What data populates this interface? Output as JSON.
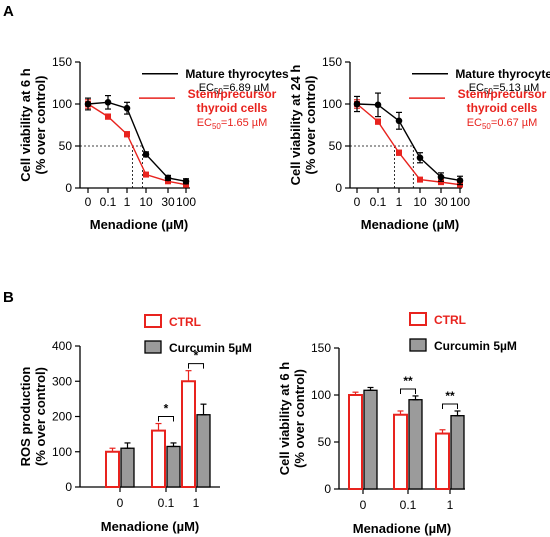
{
  "panels": {
    "a": "A",
    "b": "B"
  },
  "colors": {
    "mature": "#000000",
    "stem": "#e8231e",
    "ctrl_edge": "#e8231e",
    "curcumin_fill": "#9b9b9b"
  },
  "chart_data": [
    {
      "type": "line",
      "xlabel": "Menadione (µM)",
      "ylabel": "Cell viability at 6 h",
      "ylabel2": "(% over control)",
      "ylim": [
        0,
        150
      ],
      "yticks": [
        0,
        50,
        100,
        150
      ],
      "x_tick_labels": [
        "0",
        "0.1",
        "1",
        "10",
        "30",
        "100"
      ],
      "series": [
        {
          "name": "Mature thyrocytes",
          "ec50": "EC50=6.89 µM",
          "ec50_pre": "EC",
          "ec50_sub": "50",
          "ec50_post": "=6.89 µM",
          "values": [
            100,
            102,
            95,
            40,
            12,
            8
          ],
          "errors": [
            7,
            8,
            7,
            3,
            3,
            3
          ]
        },
        {
          "name": "Stem/precursor",
          "name2": "thyroid cells",
          "ec50": "EC50=1.65 µM",
          "ec50_pre": "EC",
          "ec50_sub": "50",
          "ec50_post": "=1.65 µM",
          "values": [
            100,
            85,
            64,
            16,
            8,
            4
          ],
          "errors": [
            5,
            3,
            3,
            2,
            2,
            2
          ]
        }
      ]
    },
    {
      "type": "line",
      "xlabel": "Menadione (µM)",
      "ylabel": "Cell viability at 24 h",
      "ylabel2": "(% over control)",
      "ylim": [
        0,
        150
      ],
      "yticks": [
        0,
        50,
        100,
        150
      ],
      "x_tick_labels": [
        "0",
        "0.1",
        "1",
        "10",
        "30",
        "100"
      ],
      "series": [
        {
          "name": "Mature thyrocytes",
          "ec50": "EC50=5.13 µM",
          "ec50_pre": "EC",
          "ec50_sub": "50",
          "ec50_post": "=5.13 µM",
          "values": [
            100,
            99,
            80,
            36,
            13,
            9
          ],
          "errors": [
            9,
            14,
            10,
            6,
            5,
            5
          ]
        },
        {
          "name": "Stem/precursor",
          "name2": "thyroid cells",
          "ec50": "EC50=0.67 µM",
          "ec50_pre": "EC",
          "ec50_sub": "50",
          "ec50_post": "=0.67 µM",
          "values": [
            100,
            79,
            42,
            10,
            7,
            4
          ],
          "errors": [
            5,
            3,
            3,
            2,
            2,
            2
          ]
        }
      ]
    },
    {
      "type": "bar",
      "xlabel": "Menadione (µM)",
      "ylabel": "ROS production",
      "ylabel2": "(% over control)",
      "ylim": [
        0,
        400
      ],
      "yticks": [
        0,
        100,
        200,
        300,
        400
      ],
      "categories": [
        "0",
        "0.1",
        "1"
      ],
      "series": [
        {
          "name": "CTRL",
          "values": [
            100,
            160,
            300
          ],
          "errors": [
            10,
            20,
            30
          ]
        },
        {
          "name": "Curcumin 5µM",
          "values": [
            110,
            115,
            205
          ],
          "errors": [
            15,
            10,
            30
          ]
        }
      ],
      "significance": [
        "",
        "*",
        "*"
      ]
    },
    {
      "type": "bar",
      "xlabel": "Menadione (µM)",
      "ylabel": "Cell viability at 6 h",
      "ylabel2": "(% over control)",
      "ylim": [
        0,
        150
      ],
      "yticks": [
        0,
        50,
        100,
        150
      ],
      "categories": [
        "0",
        "0.1",
        "1"
      ],
      "series": [
        {
          "name": "CTRL",
          "values": [
            100,
            79,
            59
          ],
          "errors": [
            3,
            4,
            4
          ]
        },
        {
          "name": "Curcumin 5µM",
          "values": [
            105,
            95,
            78
          ],
          "errors": [
            3,
            4,
            5
          ]
        }
      ],
      "significance": [
        "",
        "**",
        "**"
      ]
    }
  ]
}
